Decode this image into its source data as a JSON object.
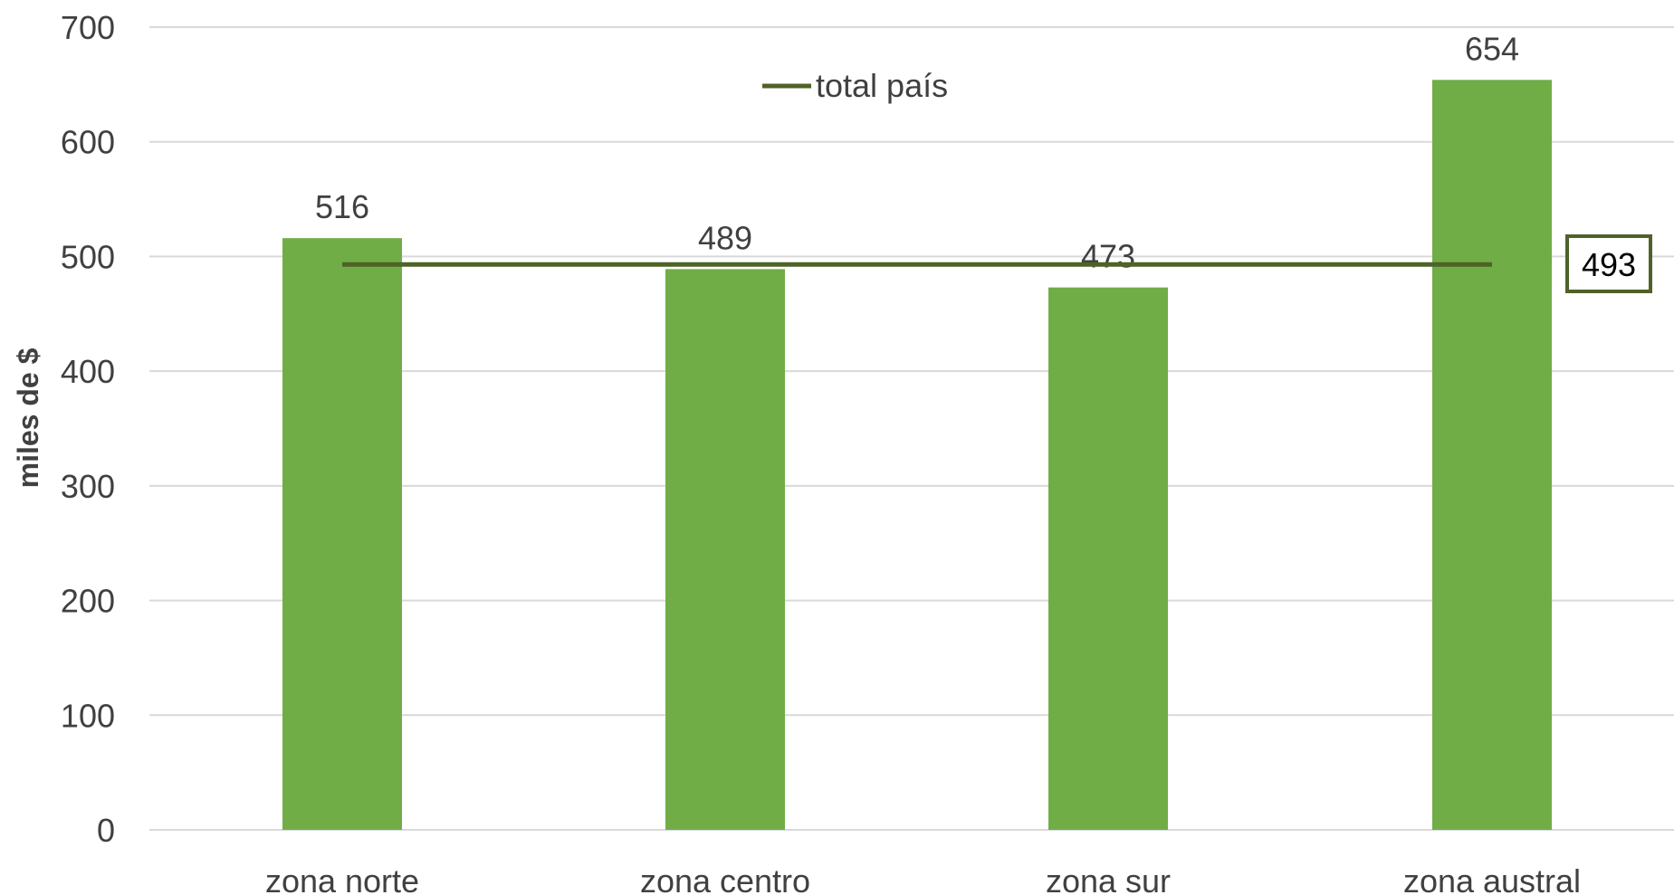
{
  "chart_data": {
    "type": "bar",
    "categories": [
      "zona norte",
      "zona centro",
      "zona sur",
      "zona austral"
    ],
    "series": [
      {
        "values": [
          516,
          489,
          473,
          654
        ],
        "color": "#70ad47"
      },
      {
        "name": "total país",
        "type": "line",
        "values": [
          493,
          493,
          493,
          493
        ],
        "color": "#4f6228",
        "end_label": "493"
      }
    ],
    "data_labels": [
      "516",
      "489",
      "473",
      "654"
    ],
    "ylabel": "miles de $",
    "xlabel": "",
    "ylim": [
      0,
      700
    ],
    "yticks": [
      0,
      100,
      200,
      300,
      400,
      500,
      600,
      700
    ],
    "grid": true,
    "legend": "top-center"
  }
}
